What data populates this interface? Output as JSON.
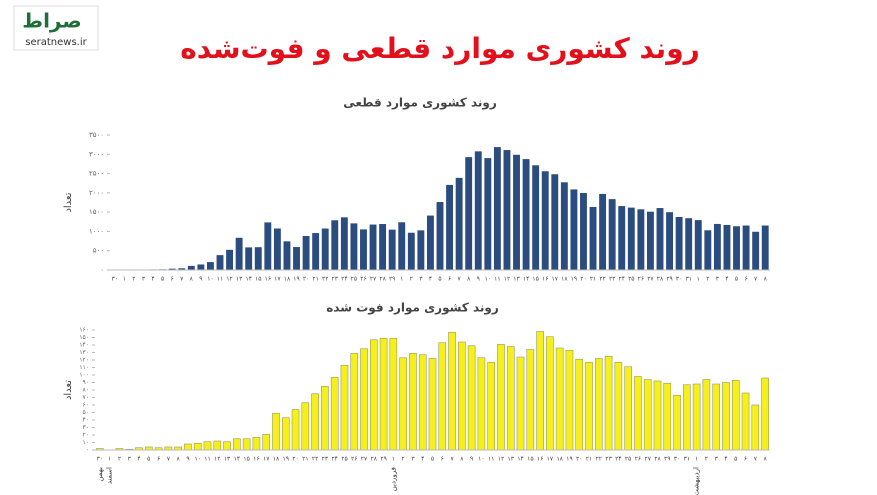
{
  "header": {
    "title": "روند کشوری موارد قطعی و فوت‌شده",
    "logo": "صراط",
    "site": "seratnews.ir"
  },
  "chart_data": [
    {
      "type": "bar",
      "title": "روند کشوری موارد قطعی",
      "ylabel": "تعداد",
      "color": "#2b4c7e",
      "categories": [
        "۳۰",
        "۱",
        "۲",
        "۳",
        "۴",
        "۵",
        "۶",
        "۷",
        "۸",
        "۹",
        "۱۰",
        "۱۱",
        "۱۲",
        "۱۳",
        "۱۴",
        "۱۵",
        "۱۶",
        "۱۷",
        "۱۸",
        "۱۹",
        "۲۰",
        "۲۱",
        "۲۲",
        "۲۳",
        "۲۴",
        "۲۵",
        "۲۶",
        "۲۷",
        "۲۸",
        "۲۹",
        "۱",
        "۲",
        "۳",
        "۴",
        "۵",
        "۶",
        "۷",
        "۸",
        "۹",
        "۱۰",
        "۱۱",
        "۱۲",
        "۱۳",
        "۱۴",
        "۱۵",
        "۱۶",
        "۱۷",
        "۱۸",
        "۱۹",
        "۲۰",
        "۲۱",
        "۲۲",
        "۲۳",
        "۲۴",
        "۲۵",
        "۲۶",
        "۲۷",
        "۲۸",
        "۲۹",
        "۳۰",
        "۳۱",
        "۱",
        "۲",
        "۳",
        "۴",
        "۵",
        "۶",
        "۷",
        "۸"
      ],
      "values": [
        2,
        3,
        13,
        10,
        15,
        18,
        34,
        44,
        106,
        143,
        205,
        385,
        523,
        835,
        586,
        591,
        1234,
        1076,
        743,
        595,
        881,
        958,
        1075,
        1289,
        1365,
        1209,
        1053,
        1178,
        1192,
        1046,
        1237,
        966,
        1028,
        1411,
        1762,
        2206,
        2389,
        2926,
        3076,
        2901,
        3186,
        3110,
        2987,
        2875,
        2715,
        2560,
        2483,
        2274,
        2089,
        1997,
        1634,
        1972,
        1837,
        1657,
        1617,
        1574,
        1512,
        1606,
        1499,
        1374,
        1343,
        1294,
        1030,
        1194,
        1168,
        1134,
        1153,
        991,
        1153
      ],
      "ylim": [
        0,
        3500
      ],
      "yticks": [
        {
          "value": 0,
          "label": "۰"
        },
        {
          "value": 500,
          "label": "۵۰۰"
        },
        {
          "value": 1000,
          "label": "۱۰۰۰"
        },
        {
          "value": 1500,
          "label": "۱۵۰۰"
        },
        {
          "value": 2000,
          "label": "۲۰۰۰"
        },
        {
          "value": 2500,
          "label": "۲۵۰۰"
        },
        {
          "value": 3000,
          "label": "۳۰۰۰"
        },
        {
          "value": 3500,
          "label": "۳۵۰۰"
        }
      ]
    },
    {
      "type": "bar",
      "title": "روند کشوری موارد فوت شده",
      "ylabel": "تعداد",
      "color": "#f5ef1c",
      "categories": [
        "۳۰",
        "۱",
        "۲",
        "۳",
        "۴",
        "۵",
        "۶",
        "۷",
        "۸",
        "۹",
        "۱۰",
        "۱۱",
        "۱۲",
        "۱۳",
        "۱۴",
        "۱۵",
        "۱۶",
        "۱۷",
        "۱۸",
        "۱۹",
        "۲۰",
        "۲۱",
        "۲۲",
        "۲۳",
        "۲۴",
        "۲۵",
        "۲۶",
        "۲۷",
        "۲۸",
        "۲۹",
        "۱",
        "۲",
        "۳",
        "۴",
        "۵",
        "۶",
        "۷",
        "۸",
        "۹",
        "۱۰",
        "۱۱",
        "۱۲",
        "۱۳",
        "۱۴",
        "۱۵",
        "۱۶",
        "۱۷",
        "۱۸",
        "۱۹",
        "۲۰",
        "۲۱",
        "۲۲",
        "۲۳",
        "۲۴",
        "۲۵",
        "۲۶",
        "۲۷",
        "۲۸",
        "۲۹",
        "۳۰",
        "۳۱",
        "۱",
        "۲",
        "۳",
        "۴",
        "۵",
        "۶",
        "۷",
        "۸"
      ],
      "month_labels": [
        "بهمن",
        "اسفند",
        null,
        null,
        null,
        null,
        null,
        null,
        null,
        null,
        null,
        null,
        null,
        null,
        null,
        null,
        null,
        null,
        null,
        null,
        null,
        null,
        null,
        null,
        null,
        null,
        null,
        null,
        null,
        null,
        "فروردین",
        null,
        null,
        null,
        null,
        null,
        null,
        null,
        null,
        null,
        null,
        null,
        null,
        null,
        null,
        null,
        null,
        null,
        null,
        null,
        null,
        null,
        null,
        null,
        null,
        null,
        null,
        null,
        null,
        null,
        null,
        "اردیبهشت",
        null,
        null,
        null,
        null,
        null,
        null,
        null
      ],
      "values": [
        2,
        0,
        2,
        1,
        3,
        4,
        3,
        4,
        4,
        8,
        9,
        11,
        12,
        11,
        15,
        15,
        17,
        21,
        49,
        43,
        54,
        63,
        75,
        85,
        97,
        113,
        129,
        135,
        147,
        149,
        149,
        123,
        129,
        127,
        122,
        143,
        157,
        144,
        139,
        123,
        117,
        141,
        138,
        124,
        134,
        158,
        151,
        136,
        133,
        121,
        117,
        122,
        125,
        117,
        111,
        98,
        94,
        92,
        89,
        73,
        87,
        88,
        94,
        88,
        90,
        93,
        76,
        60,
        96
      ],
      "ylim": [
        0,
        160
      ],
      "yticks": [
        {
          "value": 0,
          "label": "۰"
        },
        {
          "value": 10,
          "label": "۱۰"
        },
        {
          "value": 20,
          "label": "۲۰"
        },
        {
          "value": 30,
          "label": "۳۰"
        },
        {
          "value": 40,
          "label": "۴۰"
        },
        {
          "value": 50,
          "label": "۵۰"
        },
        {
          "value": 60,
          "label": "۶۰"
        },
        {
          "value": 70,
          "label": "۷۰"
        },
        {
          "value": 80,
          "label": "۸۰"
        },
        {
          "value": 90,
          "label": "۹۰"
        },
        {
          "value": 100,
          "label": "۱۰۰"
        },
        {
          "value": 110,
          "label": "۱۱۰"
        },
        {
          "value": 120,
          "label": "۱۲۰"
        },
        {
          "value": 130,
          "label": "۱۳۰"
        },
        {
          "value": 140,
          "label": "۱۴۰"
        },
        {
          "value": 150,
          "label": "۱۵۰"
        },
        {
          "value": 160,
          "label": "۱۶۰"
        }
      ]
    }
  ]
}
